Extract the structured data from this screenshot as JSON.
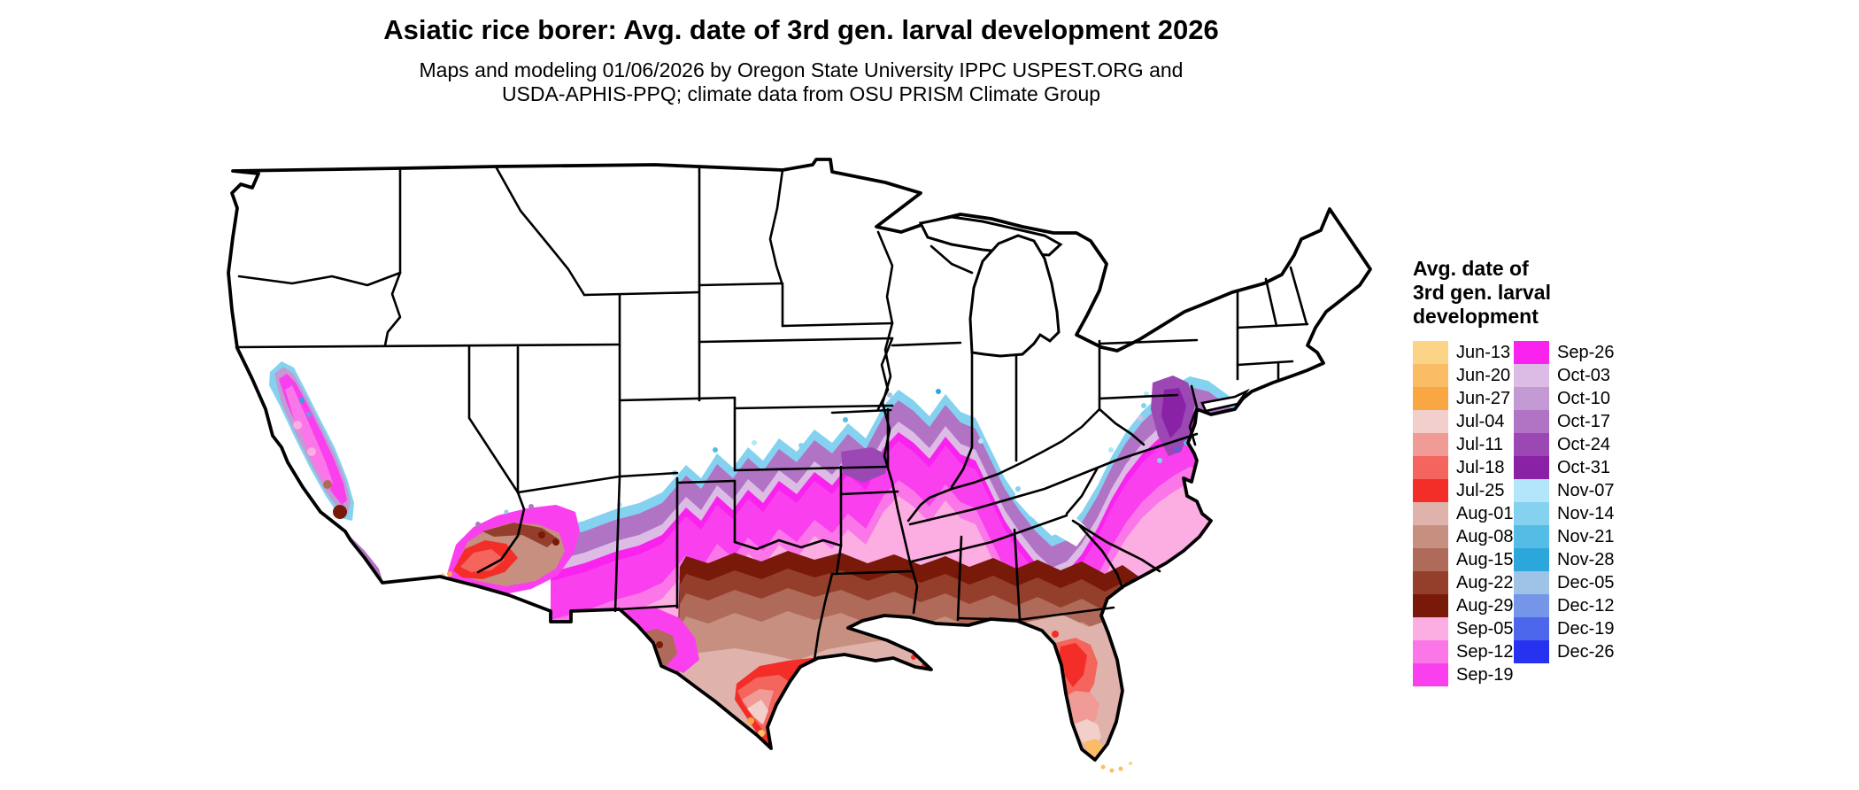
{
  "header": {
    "title": "Asiatic rice borer: Avg. date of 3rd gen. larval development 2026",
    "subtitle_line1": "Maps and modeling 01/06/2026 by Oregon State University IPPC USPEST.ORG and",
    "subtitle_line2": "USDA-APHIS-PPQ; climate data from OSU PRISM Climate Group"
  },
  "legend": {
    "title_lines": [
      "Avg. date of",
      "3rd gen. larval",
      "development"
    ],
    "column1": [
      {
        "label": "Jun-13",
        "color": "#FCD488"
      },
      {
        "label": "Jun-20",
        "color": "#FBBC66"
      },
      {
        "label": "Jun-27",
        "color": "#F9A743"
      },
      {
        "label": "Jul-04",
        "color": "#F2CFCA"
      },
      {
        "label": "Jul-11",
        "color": "#F09B95"
      },
      {
        "label": "Jul-18",
        "color": "#F4655E"
      },
      {
        "label": "Jul-25",
        "color": "#F32D28"
      },
      {
        "label": "Aug-01",
        "color": "#DFB3AB"
      },
      {
        "label": "Aug-08",
        "color": "#C68F80"
      },
      {
        "label": "Aug-15",
        "color": "#AF6A5A"
      },
      {
        "label": "Aug-22",
        "color": "#933F2B"
      },
      {
        "label": "Aug-29",
        "color": "#78190A"
      },
      {
        "label": "Sep-05",
        "color": "#FCADE2"
      },
      {
        "label": "Sep-12",
        "color": "#FB77E9"
      },
      {
        "label": "Sep-19",
        "color": "#FA3FEE"
      }
    ],
    "column2": [
      {
        "label": "Sep-26",
        "color": "#F922EE"
      },
      {
        "label": "Oct-03",
        "color": "#DCBCE4"
      },
      {
        "label": "Oct-10",
        "color": "#C49AD4"
      },
      {
        "label": "Oct-17",
        "color": "#B173C4"
      },
      {
        "label": "Oct-24",
        "color": "#9C48B4"
      },
      {
        "label": "Oct-31",
        "color": "#8A22A5"
      },
      {
        "label": "Nov-07",
        "color": "#B3E6FA"
      },
      {
        "label": "Nov-14",
        "color": "#84D2F0"
      },
      {
        "label": "Nov-21",
        "color": "#55BCE5"
      },
      {
        "label": "Nov-28",
        "color": "#2CA7DB"
      },
      {
        "label": "Dec-05",
        "color": "#9FC3E6"
      },
      {
        "label": "Dec-12",
        "color": "#7595E8"
      },
      {
        "label": "Dec-19",
        "color": "#4C66EC"
      },
      {
        "label": "Dec-26",
        "color": "#2732F0"
      }
    ]
  },
  "map": {
    "region": "Contiguous United States with state boundaries",
    "background": "#FFFFFF",
    "outline_color": "#000000",
    "colors": {
      "Jun-13": "#FCD488",
      "Jun-20": "#FBBC66",
      "Jun-27": "#F9A743",
      "Jul-04": "#F2CFCA",
      "Jul-11": "#F09B95",
      "Jul-18": "#F4655E",
      "Jul-25": "#F32D28",
      "Aug-01": "#DFB3AB",
      "Aug-08": "#C68F80",
      "Aug-15": "#AF6A5A",
      "Aug-22": "#933F2B",
      "Aug-29": "#78190A",
      "Sep-05": "#FCADE2",
      "Sep-12": "#FB77E9",
      "Sep-19": "#FA3FEE",
      "Sep-26": "#F922EE",
      "Oct-03": "#DCBCE4",
      "Oct-10": "#C49AD4",
      "Oct-17": "#B173C4",
      "Oct-24": "#9C48B4",
      "Oct-31": "#8A22A5",
      "Nov-07": "#B3E6FA",
      "Nov-14": "#84D2F0",
      "Nov-21": "#55BCE5",
      "Nov-28": "#2CA7DB",
      "Dec-05": "#9FC3E6",
      "Dec-12": "#7595E8",
      "Dec-19": "#4C66EC",
      "Dec-26": "#2732F0"
    }
  }
}
